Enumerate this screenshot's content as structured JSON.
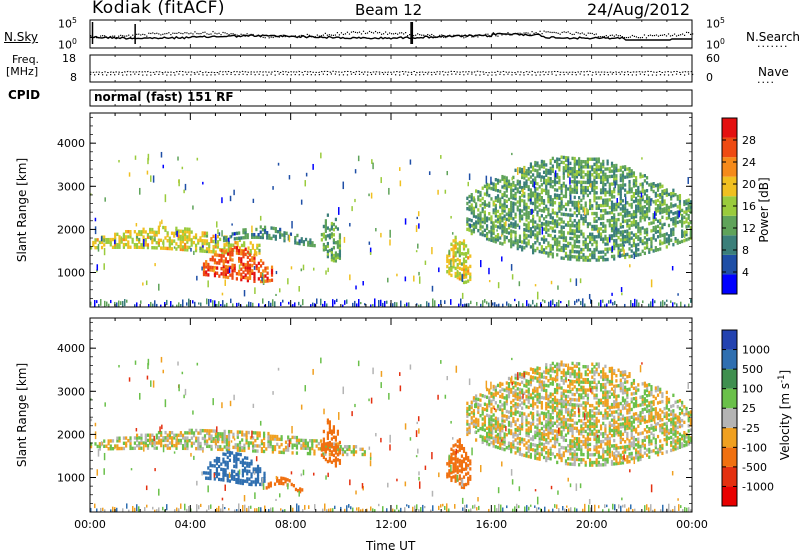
{
  "header": {
    "station": "Kodiak (fitACF)",
    "beam": "Beam 12",
    "date": "24/Aug/2012"
  },
  "noise_panel": {
    "left_label": "N.Sky",
    "right_label": "N.Search",
    "left_ticks": [
      "10^5",
      "10^0"
    ],
    "right_ticks": [
      "10^5",
      "10^0"
    ]
  },
  "freq_panel": {
    "left_label_line1": "Freq.",
    "left_label_line2": "[MHz]",
    "right_label": "Nave",
    "left_ticks": [
      "18",
      "8"
    ],
    "right_ticks": [
      "60",
      "0"
    ]
  },
  "cpid": {
    "label": "CPID",
    "value": "normal (fast) 151 RF"
  },
  "colors": {
    "power_scale": [
      "#0000ff",
      "#1f4fa6",
      "#3b7f7a",
      "#5fa35a",
      "#9acb3c",
      "#f0c020",
      "#f58a1a",
      "#ee4a12",
      "#e41010"
    ],
    "velocity_scale": [
      "#2342b0",
      "#2f6fb0",
      "#3f8f4f",
      "#6ac04a",
      "#b4b4b4",
      "#f0a020",
      "#f07010",
      "#e43010",
      "#e80000"
    ],
    "ground_scatter": "#b4b4b4"
  },
  "chart_data": [
    {
      "type": "heatmap",
      "title": "",
      "ylabel": "Slant Range [km]",
      "xlabel": "",
      "x_range": [
        "00:00",
        "24:00"
      ],
      "ylim": [
        200,
        4700
      ],
      "yticks": [
        "1000",
        "2000",
        "3000",
        "4000"
      ],
      "colorbar": {
        "label": "Power [dB]",
        "ticks": [
          "4",
          "8",
          "12",
          "16",
          "20",
          "24",
          "28"
        ],
        "range": [
          0,
          32
        ]
      },
      "features": [
        {
          "t_start": 0.0,
          "t_end": 6.8,
          "range_start": 1450,
          "range_end": 1950,
          "power": 18
        },
        {
          "t_start": 4.5,
          "t_end": 7.3,
          "range_start": 750,
          "range_end": 1500,
          "power": 26
        },
        {
          "t_start": 5.3,
          "t_end": 9.0,
          "range_start": 1700,
          "range_end": 1950,
          "power": 10
        },
        {
          "t_start": 9.2,
          "t_end": 10.0,
          "range_start": 1200,
          "range_end": 2300,
          "power": 12
        },
        {
          "t_start": 14.2,
          "t_end": 15.2,
          "range_start": 700,
          "range_end": 1800,
          "power": 18
        },
        {
          "t_start": 15.0,
          "t_end": 24.0,
          "range_start": 1200,
          "range_end": 3600,
          "power": 12
        }
      ]
    },
    {
      "type": "heatmap",
      "title": "",
      "ylabel": "Slant Range [km]",
      "xlabel": "Time UT",
      "x_range": [
        "00:00",
        "24:00"
      ],
      "xticks": [
        "00:00",
        "04:00",
        "08:00",
        "12:00",
        "16:00",
        "20:00",
        "00:00"
      ],
      "ylim": [
        200,
        4700
      ],
      "yticks": [
        "1000",
        "2000",
        "3000",
        "4000"
      ],
      "colorbar": {
        "label": "Velocity [m s^-1]",
        "ticks": [
          "1000",
          "500",
          "100",
          "25",
          "-25",
          "-100",
          "-500",
          "-1000"
        ]
      },
      "features": [
        {
          "t_start": 0.0,
          "t_end": 11.0,
          "range_start": 1550,
          "range_end": 2000,
          "velocity": 0
        },
        {
          "t_start": 4.5,
          "t_end": 7.0,
          "range_start": 800,
          "range_end": 1500,
          "velocity": 600
        },
        {
          "t_start": 7.0,
          "t_end": 8.5,
          "range_start": 750,
          "range_end": 900,
          "velocity": -200
        },
        {
          "t_start": 9.2,
          "t_end": 10.0,
          "range_start": 1200,
          "range_end": 2300,
          "velocity": -400
        },
        {
          "t_start": 14.2,
          "t_end": 15.2,
          "range_start": 700,
          "range_end": 1800,
          "velocity": -300
        },
        {
          "t_start": 15.0,
          "t_end": 24.0,
          "range_start": 1200,
          "range_end": 3600,
          "velocity": 0
        }
      ]
    }
  ]
}
